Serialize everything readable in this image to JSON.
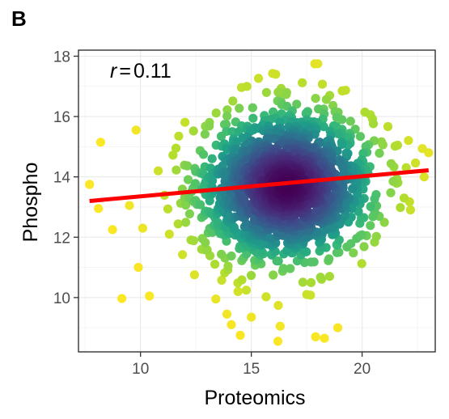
{
  "panel_label": "B",
  "chart_data": {
    "type": "scatter",
    "title": "",
    "xlabel": "Proteomics",
    "ylabel": "Phospho",
    "xlim": [
      7.2,
      23.3
    ],
    "ylim": [
      8.2,
      18.2
    ],
    "x_ticks": [
      10,
      15,
      20
    ],
    "y_ticks": [
      10,
      12,
      14,
      16,
      18
    ],
    "x_tick_labels": [
      "10",
      "15",
      "20"
    ],
    "y_tick_labels": [
      "10",
      "12",
      "14",
      "16",
      "18"
    ],
    "grid": true,
    "annotation": {
      "symbol": "r",
      "eq": "=",
      "value": "0.11"
    },
    "point_color_scale": "viridis (density: purple = high, yellow = low)",
    "colors": {
      "regression_line": "#ff0000",
      "viridis": [
        "#440154",
        "#3b528b",
        "#21918c",
        "#5ec962",
        "#fde725"
      ]
    },
    "center": {
      "x": 16.6,
      "y": 13.7
    },
    "spread": {
      "sx": 1.9,
      "sy": 1.2
    },
    "point_count": 1600,
    "regression": {
      "x": [
        7.7,
        23.0
      ],
      "y": [
        13.2,
        14.22
      ]
    },
    "outliers": [
      {
        "x": 7.7,
        "y": 13.75
      },
      {
        "x": 8.1,
        "y": 12.95
      },
      {
        "x": 8.2,
        "y": 15.15
      },
      {
        "x": 9.5,
        "y": 13.05
      },
      {
        "x": 9.8,
        "y": 15.55
      },
      {
        "x": 9.9,
        "y": 11.0
      },
      {
        "x": 10.1,
        "y": 12.3
      },
      {
        "x": 10.4,
        "y": 10.05
      },
      {
        "x": 10.8,
        "y": 14.2
      },
      {
        "x": 11.3,
        "y": 12.1
      },
      {
        "x": 11.6,
        "y": 14.95
      },
      {
        "x": 12.2,
        "y": 13.3
      },
      {
        "x": 13.4,
        "y": 9.95
      },
      {
        "x": 13.9,
        "y": 9.45
      },
      {
        "x": 14.1,
        "y": 9.1
      },
      {
        "x": 14.4,
        "y": 10.2
      },
      {
        "x": 14.5,
        "y": 8.75
      },
      {
        "x": 15.0,
        "y": 9.35
      },
      {
        "x": 16.2,
        "y": 8.55
      },
      {
        "x": 16.3,
        "y": 9.05
      },
      {
        "x": 17.5,
        "y": 10.1
      },
      {
        "x": 17.9,
        "y": 8.7
      },
      {
        "x": 18.3,
        "y": 8.65
      },
      {
        "x": 18.9,
        "y": 9.0
      },
      {
        "x": 20.2,
        "y": 12.05
      },
      {
        "x": 21.4,
        "y": 13.85
      },
      {
        "x": 21.6,
        "y": 15.05
      },
      {
        "x": 22.8,
        "y": 14.0
      },
      {
        "x": 23.0,
        "y": 14.8
      },
      {
        "x": 18.0,
        "y": 17.75
      },
      {
        "x": 16.1,
        "y": 17.4
      },
      {
        "x": 14.8,
        "y": 17.0
      },
      {
        "x": 19.1,
        "y": 16.85
      }
    ]
  }
}
